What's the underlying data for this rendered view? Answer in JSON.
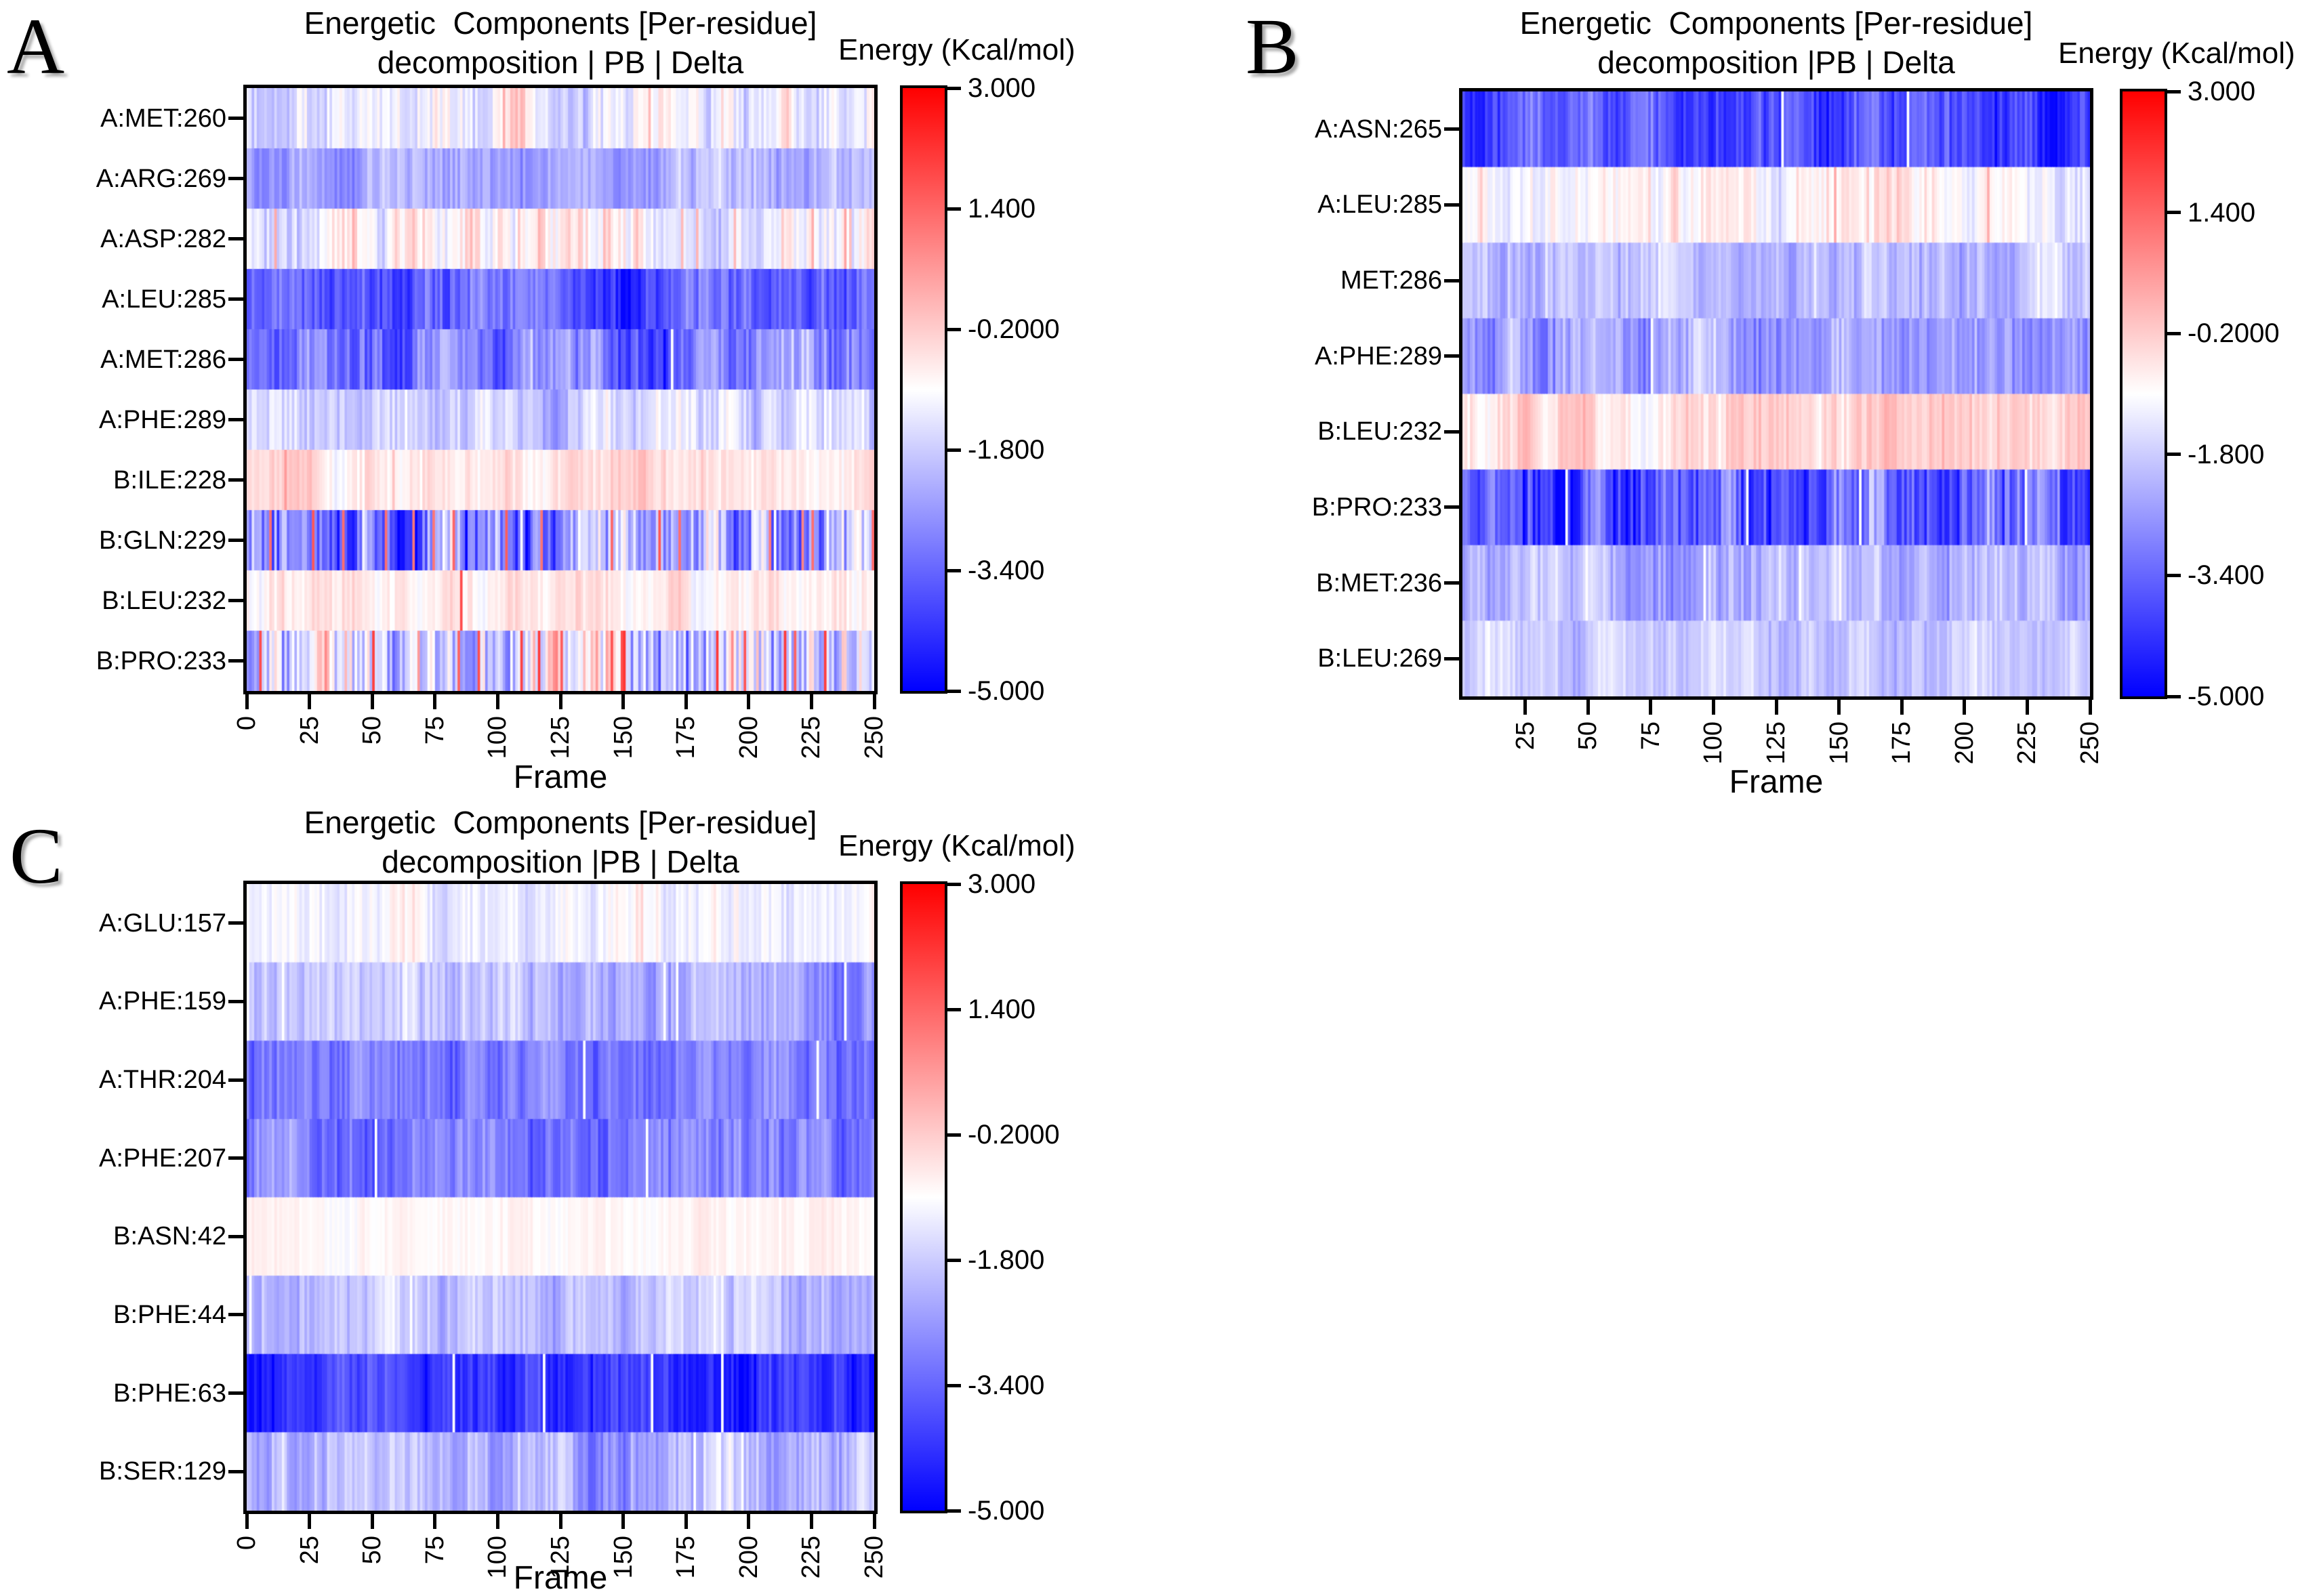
{
  "chart_data": [
    {
      "type": "heatmap",
      "panel_letter": "A",
      "title": "Energetic  Components [Per-residue]\ndecomposition | PB | Delta",
      "xlabel": "Frame",
      "x_range": [
        0,
        250
      ],
      "n_frames": 250,
      "x_ticks": [
        0,
        25,
        50,
        75,
        100,
        125,
        150,
        175,
        200,
        225,
        250
      ],
      "rows": [
        {
          "label": "A:MET:260",
          "mean_energy": -1.3,
          "sd": 0.55,
          "spike_rate": 0.02,
          "spike_value": 0.3
        },
        {
          "label": "A:ARG:269",
          "mean_energy": -2.3,
          "sd": 0.45
        },
        {
          "label": "A:ASP:282",
          "mean_energy": -1.0,
          "sd": 0.55,
          "spike_rate": 0.05,
          "spike_value": 0.1
        },
        {
          "label": "A:LEU:285",
          "mean_energy": -3.5,
          "sd": 0.55
        },
        {
          "label": "A:MET:286",
          "mean_energy": -2.9,
          "sd": 0.7
        },
        {
          "label": "A:PHE:289",
          "mean_energy": -1.6,
          "sd": 0.45
        },
        {
          "label": "B:ILE:228",
          "mean_energy": -0.55,
          "sd": 0.3,
          "spike_rate": 0.02,
          "spike_value": 0.2
        },
        {
          "label": "B:GLN:229",
          "mean_energy": -3.2,
          "sd": 1.1,
          "spike_rate": 0.05,
          "spike_value": 1.3
        },
        {
          "label": "B:LEU:232",
          "mean_energy": -0.8,
          "sd": 0.3,
          "spike_rate": 0.01,
          "spike_value": 1.6
        },
        {
          "label": "B:PRO:233",
          "mean_energy": -1.8,
          "sd": 1.3,
          "spike_rate": 0.07,
          "spike_value": 1.8
        }
      ],
      "colorbar": {
        "label": "Energy (Kcal/mol)",
        "tick_labels": [
          "3.000",
          "1.400",
          "-0.2000",
          "-1.800",
          "-3.400",
          "-5.000"
        ],
        "vmax": 3.0,
        "vmin": -5.0,
        "white_point": -1.0,
        "colormap": "red-white-blue"
      }
    },
    {
      "type": "heatmap",
      "panel_letter": "B",
      "title": "Energetic  Components [Per-residue]\ndecomposition |PB | Delta",
      "xlabel": "Frame",
      "x_range": [
        0,
        250
      ],
      "n_frames": 250,
      "x_ticks": [
        25,
        50,
        75,
        100,
        125,
        150,
        175,
        200,
        225,
        250
      ],
      "rows": [
        {
          "label": "A:ASN:265",
          "mean_energy": -3.9,
          "sd": 0.55
        },
        {
          "label": "A:LEU:285",
          "mean_energy": -0.9,
          "sd": 0.4,
          "spike_rate": 0.03,
          "spike_value": 0.0
        },
        {
          "label": "MET:286",
          "mean_energy": -1.9,
          "sd": 0.45
        },
        {
          "label": "A:PHE:289",
          "mean_energy": -2.3,
          "sd": 0.5
        },
        {
          "label": "B:LEU:232",
          "mean_energy": -0.45,
          "sd": 0.35
        },
        {
          "label": "B:PRO:233",
          "mean_energy": -3.9,
          "sd": 0.9
        },
        {
          "label": "B:MET:236",
          "mean_energy": -2.1,
          "sd": 0.5
        },
        {
          "label": "B:LEU:269",
          "mean_energy": -1.9,
          "sd": 0.35
        }
      ],
      "colorbar": {
        "label": "Energy (Kcal/mol)",
        "tick_labels": [
          "3.000",
          "1.400",
          "-0.2000",
          "-1.800",
          "-3.400",
          "-5.000"
        ],
        "vmax": 3.0,
        "vmin": -5.0,
        "white_point": -1.0,
        "colormap": "red-white-blue"
      }
    },
    {
      "type": "heatmap",
      "panel_letter": "C",
      "title": "Energetic  Components [Per-residue]\ndecomposition |PB | Delta",
      "xlabel": "Frame",
      "x_range": [
        0,
        250
      ],
      "n_frames": 250,
      "x_ticks": [
        0,
        25,
        50,
        75,
        100,
        125,
        150,
        175,
        200,
        225,
        250
      ],
      "rows": [
        {
          "label": "A:GLU:157",
          "mean_energy": -1.35,
          "sd": 0.35
        },
        {
          "label": "A:PHE:159",
          "mean_energy": -2.2,
          "sd": 0.45
        },
        {
          "label": "A:THR:204",
          "mean_energy": -3.0,
          "sd": 0.45
        },
        {
          "label": "A:PHE:207",
          "mean_energy": -3.1,
          "sd": 0.45
        },
        {
          "label": "B:ASN:42",
          "mean_energy": -0.85,
          "sd": 0.15
        },
        {
          "label": "B:PHE:44",
          "mean_energy": -1.85,
          "sd": 0.4
        },
        {
          "label": "B:PHE:63",
          "mean_energy": -4.2,
          "sd": 0.45
        },
        {
          "label": "B:SER:129",
          "mean_energy": -2.15,
          "sd": 0.5
        }
      ],
      "colorbar": {
        "label": "Energy (Kcal/mol)",
        "tick_labels": [
          "3.000",
          "1.400",
          "-0.2000",
          "-1.800",
          "-3.400",
          "-5.000"
        ],
        "vmax": 3.0,
        "vmin": -5.0,
        "white_point": -1.0,
        "colormap": "red-white-blue"
      }
    }
  ]
}
